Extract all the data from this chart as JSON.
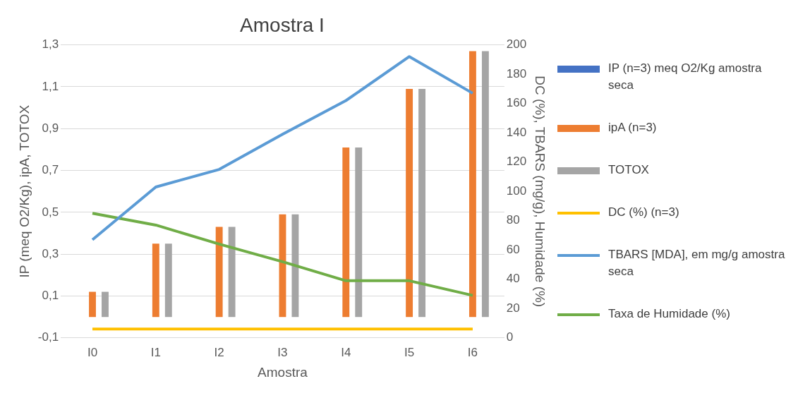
{
  "chart_data": {
    "type": "bar",
    "title": "Amostra I",
    "xlabel": "Amostra",
    "ylabel": "IP (meq O2/Kg), ipA, TOTOX",
    "y2label": "DC (%), TBARS (mg/g), Humidade (%)",
    "categories": [
      "I0",
      "I1",
      "I2",
      "I3",
      "I4",
      "I5",
      "I6"
    ],
    "series": [
      {
        "name": "IP (n=3) meq O2/Kg amostra seca",
        "color": "#4472c4",
        "values": [
          null,
          null,
          null,
          null,
          null,
          null,
          null
        ]
      },
      {
        "name": "ipA (n=3)",
        "color": "#ed7d31",
        "values": [
          0.12,
          0.35,
          0.43,
          0.49,
          0.81,
          1.09,
          1.27
        ]
      },
      {
        "name": "TOTOX",
        "color": "#a5a5a5",
        "values": [
          0.12,
          0.35,
          0.43,
          0.49,
          0.81,
          1.09,
          1.27
        ]
      },
      {
        "name": "DC (%) (n=3)",
        "color": "#ffc000",
        "type": "line",
        "axis": "y2",
        "values": [
          6,
          6,
          6,
          6,
          6,
          6,
          6
        ]
      },
      {
        "name": "TBARS [MDA], em mg/g amostra seca",
        "color": "#5b9bd5",
        "type": "line",
        "axis": "y2",
        "values": [
          67,
          103,
          115,
          139,
          162,
          192,
          167
        ]
      },
      {
        "name": "Taxa de Humidade (%)",
        "color": "#70ad47",
        "type": "line",
        "axis": "y2",
        "values": [
          85,
          77,
          64,
          52,
          39,
          39,
          29
        ]
      }
    ],
    "ylim": [
      -0.1,
      1.3
    ],
    "yticks": [
      {
        "value": -0.1,
        "label": "-0,1"
      },
      {
        "value": 0.1,
        "label": "0,1"
      },
      {
        "value": 0.3,
        "label": "0,3"
      },
      {
        "value": 0.5,
        "label": "0,5"
      },
      {
        "value": 0.7,
        "label": "0,7"
      },
      {
        "value": 0.9,
        "label": "0,9"
      },
      {
        "value": 1.1,
        "label": "1,1"
      },
      {
        "value": 1.3,
        "label": "1,3"
      }
    ],
    "y2lim": [
      0,
      200
    ],
    "y2ticks": [
      0,
      20,
      40,
      60,
      80,
      100,
      120,
      140,
      160,
      180,
      200
    ],
    "grid": "y",
    "legend": "right",
    "marker": "none",
    "line_style": "solid"
  }
}
